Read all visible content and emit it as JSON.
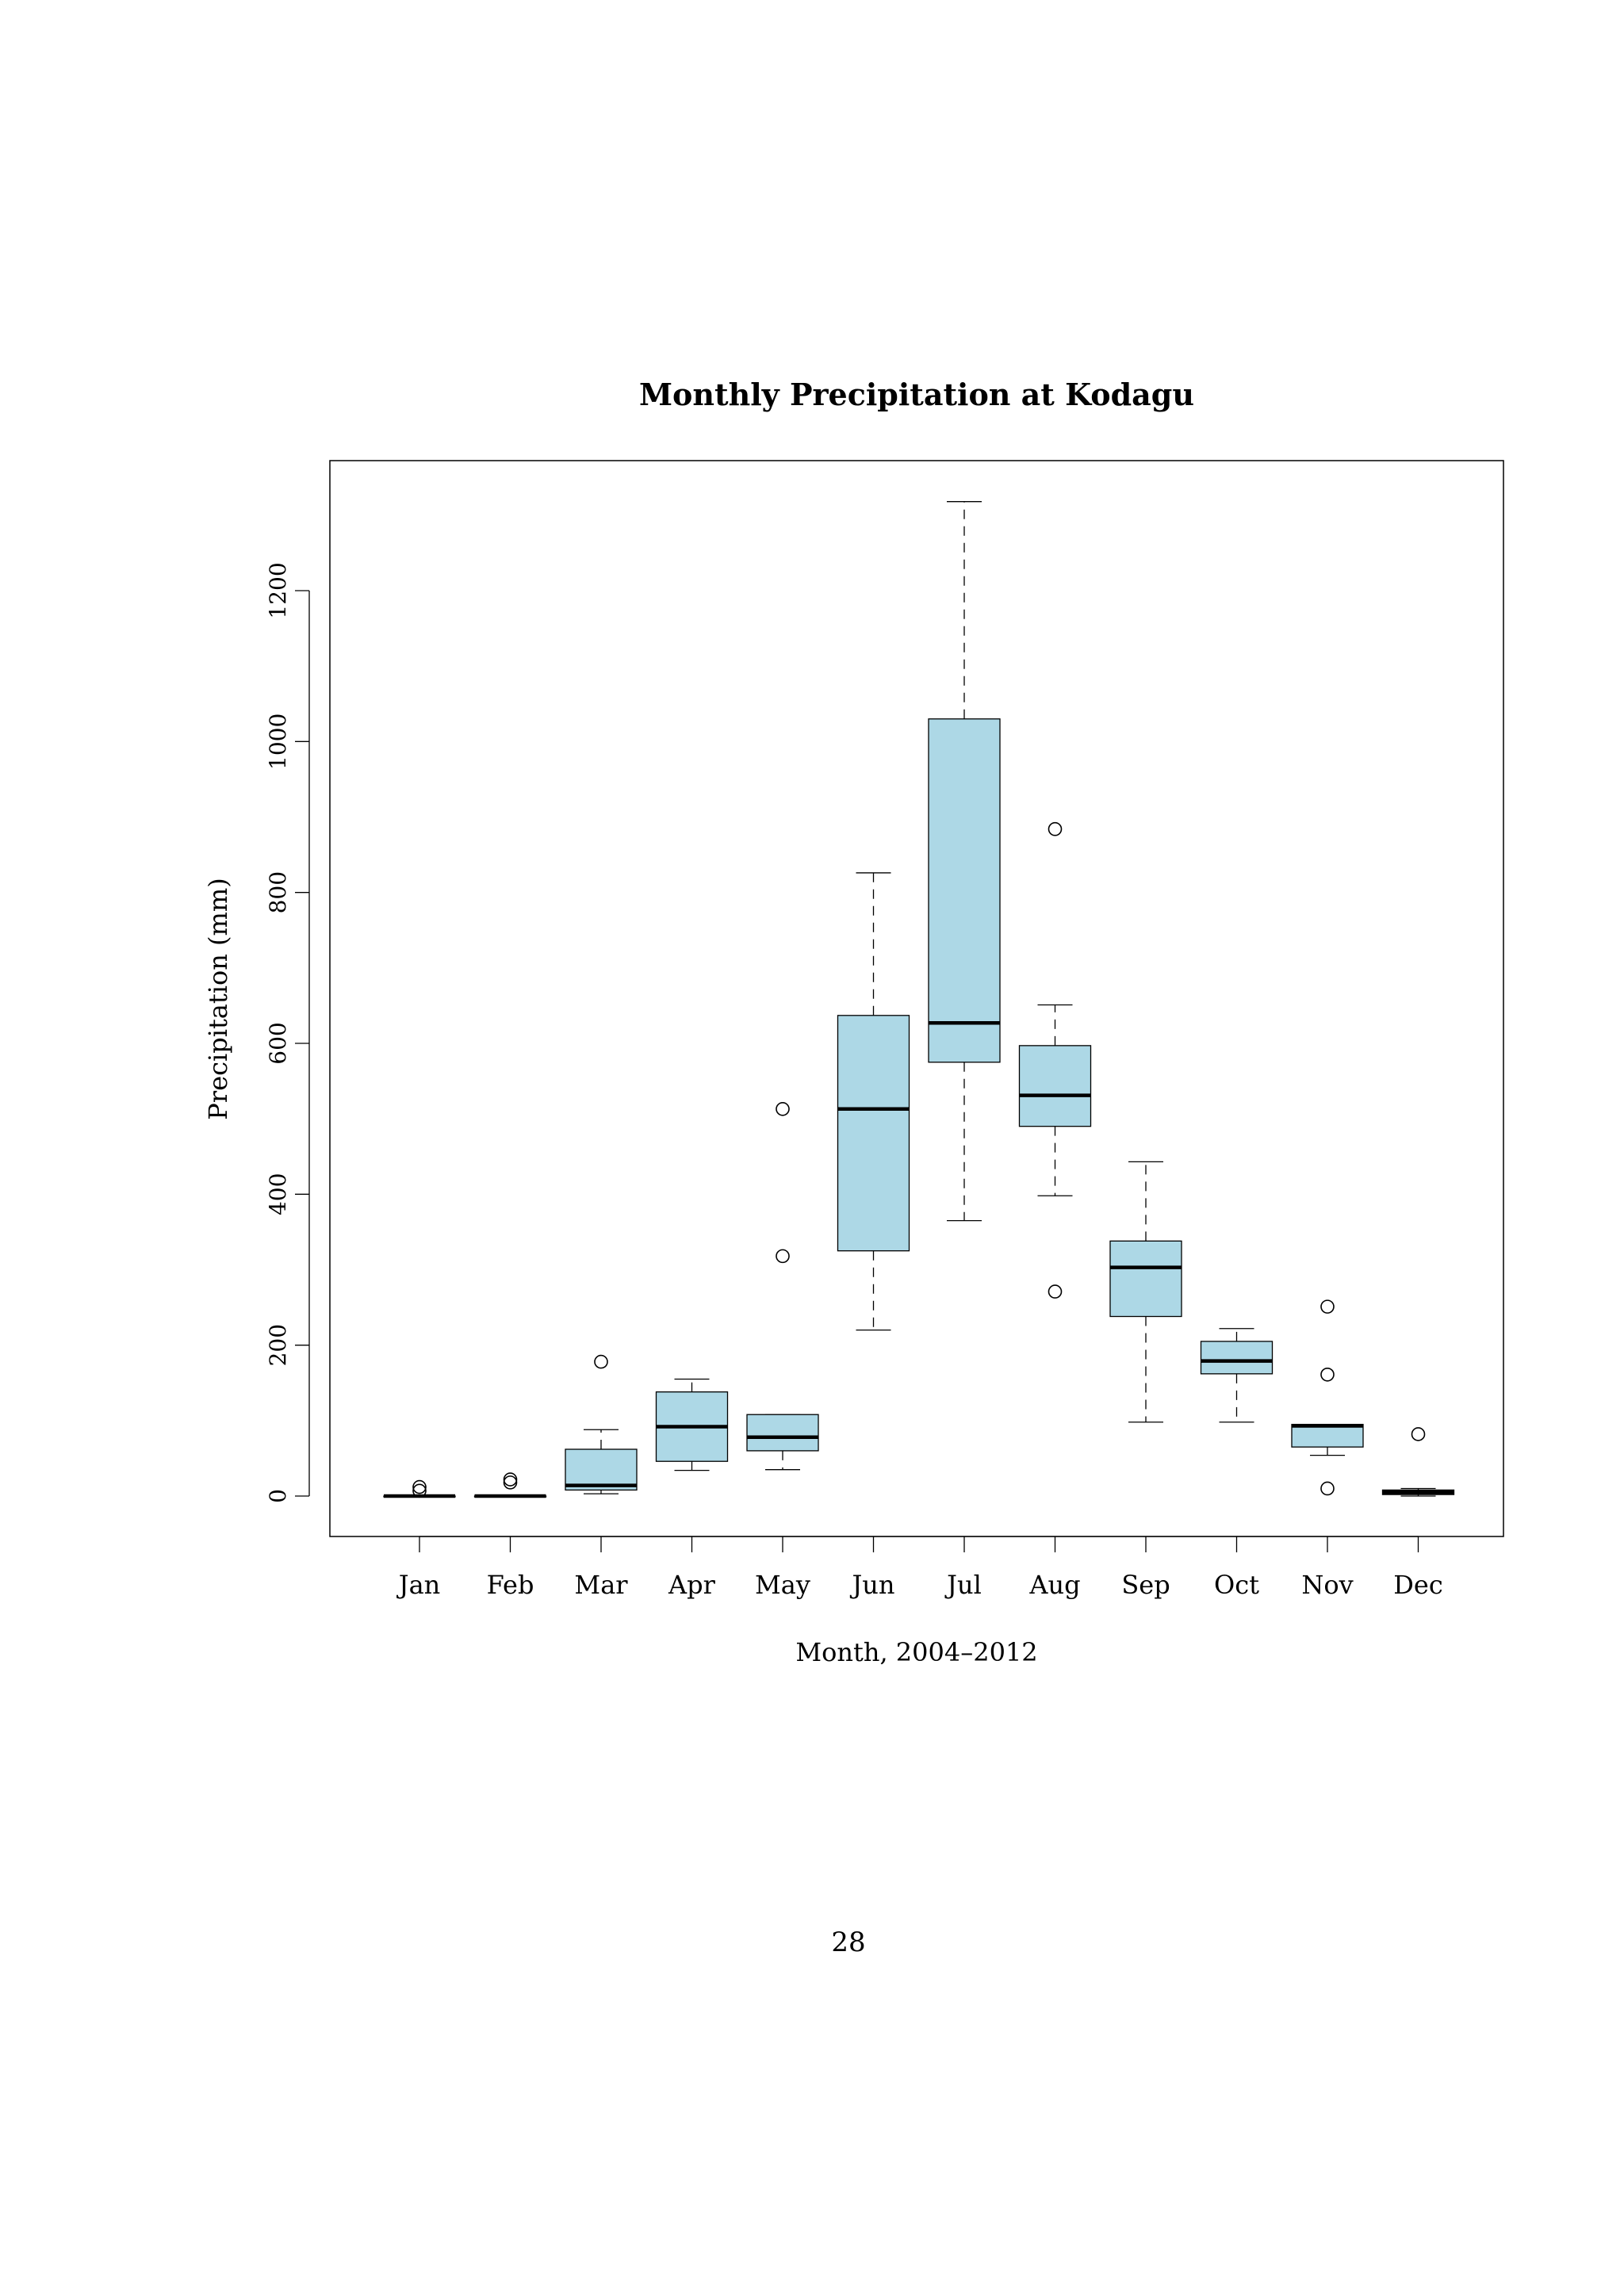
{
  "page": {
    "page_number": "28"
  },
  "chart_data": {
    "type": "box",
    "title": "Monthly Precipitation at Kodagu",
    "xlabel": "Month, 2004–2012",
    "ylabel": "Precipitation (mm)",
    "ylim": [
      -50,
      1370
    ],
    "yticks": [
      0,
      200,
      400,
      600,
      800,
      1000,
      1200
    ],
    "grid": false,
    "box_fill": "#add8e6",
    "categories": [
      "Jan",
      "Feb",
      "Mar",
      "Apr",
      "May",
      "Jun",
      "Jul",
      "Aug",
      "Sep",
      "Oct",
      "Nov",
      "Dec"
    ],
    "boxes": [
      {
        "label": "Jan",
        "whisker_low": 0,
        "q1": 0,
        "median": 0,
        "q3": 0,
        "whisker_high": 0,
        "outliers": [
          7,
          12
        ]
      },
      {
        "label": "Feb",
        "whisker_low": 0,
        "q1": 0,
        "median": 0,
        "q3": 0,
        "whisker_high": 0,
        "outliers": [
          18,
          22
        ]
      },
      {
        "label": "Mar",
        "whisker_low": 3,
        "q1": 8,
        "median": 14,
        "q3": 62,
        "whisker_high": 88,
        "outliers": [
          178
        ]
      },
      {
        "label": "Apr",
        "whisker_low": 34,
        "q1": 46,
        "median": 92,
        "q3": 138,
        "whisker_high": 155,
        "outliers": []
      },
      {
        "label": "May",
        "whisker_low": 35,
        "q1": 60,
        "median": 78,
        "q3": 108,
        "whisker_high": 108,
        "outliers": [
          318,
          513
        ]
      },
      {
        "label": "Jun",
        "whisker_low": 220,
        "q1": 325,
        "median": 513,
        "q3": 637,
        "whisker_high": 826,
        "outliers": []
      },
      {
        "label": "Jul",
        "whisker_low": 365,
        "q1": 575,
        "median": 627,
        "q3": 1030,
        "whisker_high": 1318,
        "outliers": []
      },
      {
        "label": "Aug",
        "whisker_low": 398,
        "q1": 490,
        "median": 531,
        "q3": 597,
        "whisker_high": 651,
        "outliers": [
          271,
          884
        ]
      },
      {
        "label": "Sep",
        "whisker_low": 98,
        "q1": 238,
        "median": 303,
        "q3": 338,
        "whisker_high": 443,
        "outliers": []
      },
      {
        "label": "Oct",
        "whisker_low": 98,
        "q1": 162,
        "median": 179,
        "q3": 205,
        "whisker_high": 222,
        "outliers": []
      },
      {
        "label": "Nov",
        "whisker_low": 54,
        "q1": 65,
        "median": 93,
        "q3": 95,
        "whisker_high": 95,
        "outliers": [
          10,
          161,
          251
        ]
      },
      {
        "label": "Dec",
        "whisker_low": 0,
        "q1": 2,
        "median": 5,
        "q3": 8,
        "whisker_high": 10,
        "outliers": [
          82
        ]
      }
    ]
  }
}
